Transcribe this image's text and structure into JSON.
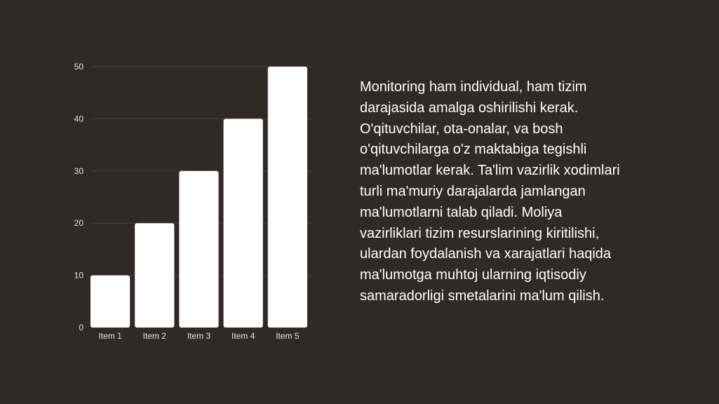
{
  "chart_data": {
    "type": "bar",
    "categories": [
      "Item 1",
      "Item 2",
      "Item 3",
      "Item 4",
      "Item 5"
    ],
    "values": [
      10,
      20,
      30,
      40,
      50
    ],
    "title": "",
    "xlabel": "",
    "ylabel": "",
    "ylim": [
      0,
      50
    ],
    "yticks": [
      0,
      10,
      20,
      30,
      40,
      50
    ],
    "grid": true,
    "legend": "none"
  },
  "colors": {
    "background": "#312925",
    "bar": "#ffffff",
    "text": "#ffffff",
    "gridline": "#4a423d"
  },
  "paragraph": "Monitoring ham individual, ham tizim darajasida amalga oshirilishi kerak. O'qituvchilar, ota-onalar, va bosh o'qituvchilarga o'z maktabiga tegishli ma'lumotlar kerak. Ta'lim vazirlik xodimlari turli ma'muriy darajalarda jamlangan ma'lumotlarni talab qiladi. Moliya vazirliklari tizim resurslarining kiritilishi, ulardan foydalanish va xarajatlari haqida ma'lumotga muhtoj ularning iqtisodiy samaradorligi smetalarini ma'lum qilish."
}
